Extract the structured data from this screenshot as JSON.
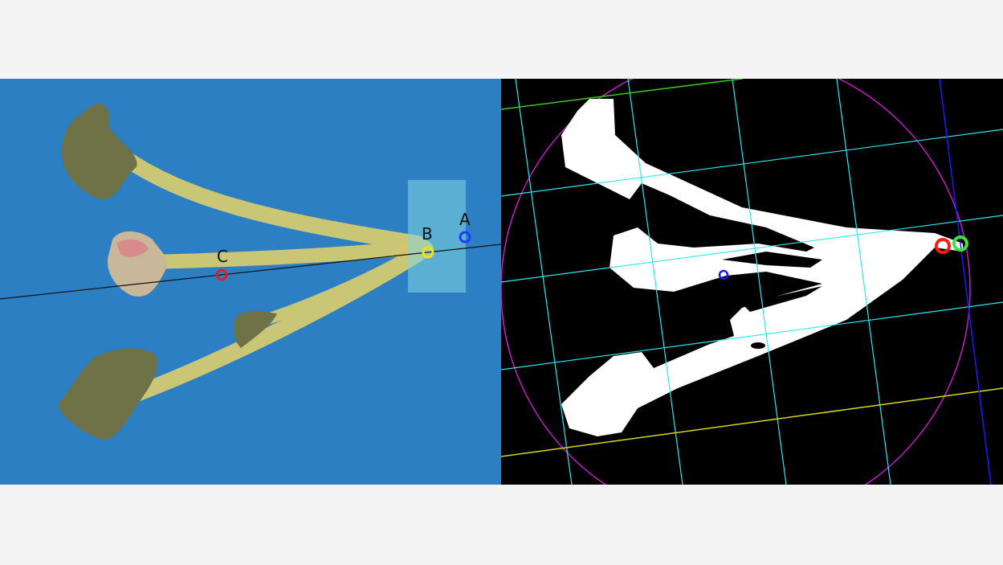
{
  "left_panel": {
    "point_labels": {
      "a": "A",
      "b": "B",
      "c": "C"
    },
    "colors": {
      "background": "#2d7fc4",
      "petal": "#6f7246",
      "stem": "#c9c676",
      "highlight": "#7fd7e0",
      "point_a": "#1e3cff",
      "point_b": "#f2e20c",
      "point_c": "#e81d1d",
      "axis_line": "#111111"
    }
  },
  "right_panel": {
    "colors": {
      "background": "#000000",
      "mask": "#ffffff",
      "grid": "#2ee8f0",
      "circle": "#c21fc2",
      "top_line": "#39c81d",
      "bottom_line": "#d8d81a",
      "right_line": "#1c1cff",
      "marker_red": "#ff1a1a",
      "marker_green": "#3fe03f",
      "center_dot": "#1a1aff"
    }
  }
}
